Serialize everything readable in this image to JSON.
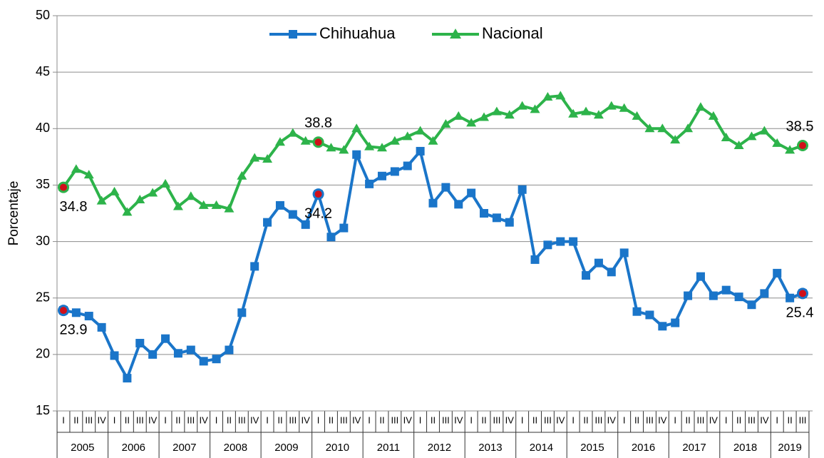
{
  "chart_data": {
    "type": "line",
    "y_axis_label": "Porcentaje",
    "categories": [
      "I",
      "II",
      "III",
      "IV",
      "I",
      "II",
      "III",
      "IV",
      "I",
      "II",
      "III",
      "IV",
      "I",
      "II",
      "III",
      "IV",
      "I",
      "II",
      "III",
      "IV",
      "I",
      "II",
      "III",
      "IV",
      "I",
      "II",
      "III",
      "IV",
      "I",
      "II",
      "III",
      "IV",
      "I",
      "II",
      "III",
      "IV",
      "I",
      "II",
      "III",
      "IV",
      "I",
      "II",
      "III",
      "IV",
      "I",
      "II",
      "III",
      "IV",
      "I",
      "II",
      "III",
      "IV",
      "I",
      "II",
      "III",
      "IV",
      "I",
      "II",
      "III"
    ],
    "years": [
      "2005",
      "2006",
      "2007",
      "2008",
      "2009",
      "2010",
      "2011",
      "2012",
      "2013",
      "2014",
      "2015",
      "2016",
      "2017",
      "2018",
      "2019"
    ],
    "series": [
      {
        "name": "Chihuahua",
        "color": "#1a75c9",
        "marker": "square",
        "values": [
          23.9,
          23.7,
          23.4,
          22.4,
          19.9,
          17.9,
          21.0,
          20.0,
          21.4,
          20.1,
          20.4,
          19.4,
          19.6,
          20.4,
          23.7,
          27.8,
          31.7,
          33.2,
          32.4,
          31.5,
          34.2,
          30.4,
          31.2,
          37.7,
          35.1,
          35.8,
          36.2,
          36.7,
          38.0,
          33.4,
          34.8,
          33.3,
          34.3,
          32.5,
          32.1,
          31.7,
          34.6,
          28.4,
          29.7,
          30.0,
          30.0,
          27.0,
          28.1,
          27.3,
          29.0,
          23.8,
          23.5,
          22.5,
          22.8,
          25.2,
          26.9,
          25.2,
          25.7,
          25.1,
          24.4,
          25.4,
          27.2,
          25.0,
          25.4
        ],
        "value_labels": [
          "23.9",
          null,
          null,
          null,
          null,
          null,
          null,
          null,
          null,
          null,
          null,
          null,
          null,
          null,
          null,
          null,
          null,
          null,
          null,
          null,
          "34.2",
          null,
          null,
          null,
          null,
          null,
          null,
          null,
          null,
          null,
          null,
          null,
          null,
          null,
          null,
          null,
          null,
          null,
          null,
          null,
          null,
          null,
          null,
          null,
          null,
          null,
          null,
          null,
          null,
          null,
          null,
          null,
          null,
          null,
          null,
          null,
          null,
          null,
          "25.4"
        ]
      },
      {
        "name": "Nacional",
        "color": "#2db34a",
        "marker": "triangle",
        "values": [
          34.8,
          36.4,
          35.9,
          33.6,
          34.4,
          32.6,
          33.7,
          34.3,
          35.1,
          33.1,
          34.0,
          33.2,
          33.2,
          32.9,
          35.8,
          37.4,
          37.3,
          38.8,
          39.6,
          38.9,
          38.8,
          38.3,
          38.1,
          40.0,
          38.4,
          38.3,
          38.9,
          39.3,
          39.8,
          38.9,
          40.4,
          41.1,
          40.5,
          41.0,
          41.5,
          41.2,
          42.0,
          41.7,
          42.8,
          42.9,
          41.3,
          41.5,
          41.2,
          42.0,
          41.8,
          41.1,
          40.0,
          40.0,
          39.0,
          40.0,
          41.9,
          41.1,
          39.2,
          38.5,
          39.3,
          39.8,
          38.7,
          38.1,
          38.5
        ],
        "value_labels": [
          "34.8",
          null,
          null,
          null,
          null,
          null,
          null,
          null,
          null,
          null,
          null,
          null,
          null,
          null,
          null,
          null,
          null,
          null,
          null,
          null,
          "38.8",
          null,
          null,
          null,
          null,
          null,
          null,
          null,
          null,
          null,
          null,
          null,
          null,
          null,
          null,
          null,
          null,
          null,
          null,
          null,
          null,
          null,
          null,
          null,
          null,
          null,
          null,
          null,
          null,
          null,
          null,
          null,
          null,
          null,
          null,
          null,
          null,
          null,
          "38.5"
        ]
      }
    ],
    "ylim": [
      15,
      50
    ],
    "yticks": [
      15,
      20,
      25,
      30,
      35,
      40,
      45,
      50
    ],
    "grid": true,
    "legend": "top"
  }
}
